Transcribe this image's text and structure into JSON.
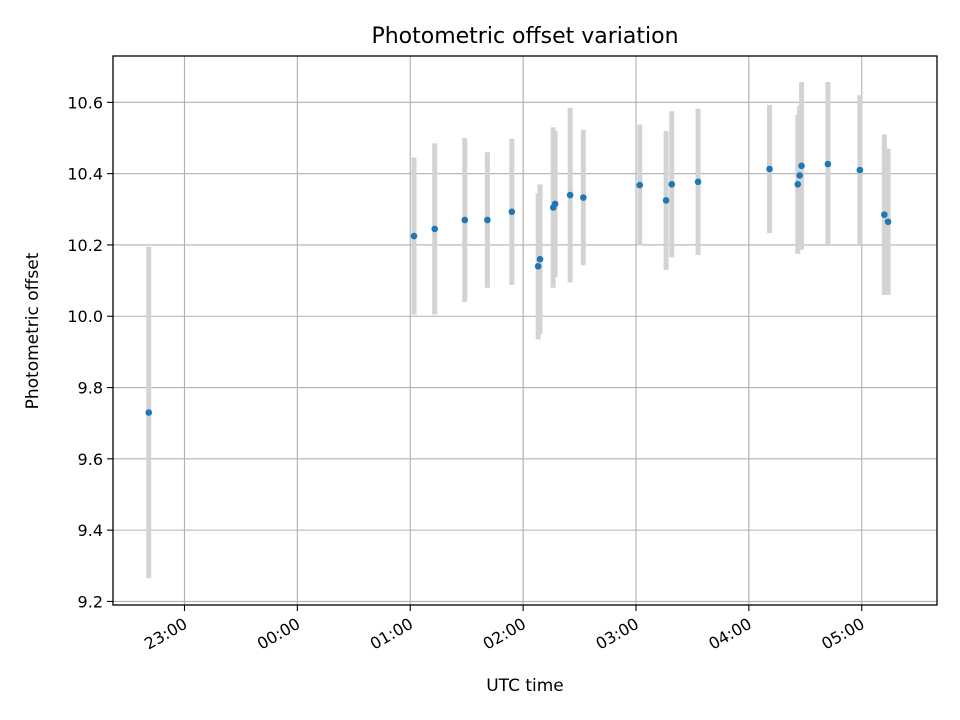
{
  "chart_data": {
    "type": "scatter",
    "title": "Photometric offset variation",
    "xlabel": "UTC time",
    "ylabel": "Photometric offset",
    "x_tick_labels": [
      "23:00",
      "00:00",
      "01:00",
      "02:00",
      "03:00",
      "04:00",
      "05:00"
    ],
    "y_tick_labels": [
      "9.2",
      "9.4",
      "9.6",
      "9.8",
      "10.0",
      "10.2",
      "10.4",
      "10.6"
    ],
    "xlim": [
      "22:22",
      "05:40"
    ],
    "ylim": [
      9.19,
      10.73
    ],
    "grid": true,
    "colors": {
      "point": "#1f77b4",
      "errorbar": "#d3d3d3",
      "grid": "#b0b0b0"
    },
    "series": [
      {
        "points": [
          {
            "x": "22:41",
            "y": 9.73,
            "err": 0.465
          },
          {
            "x": "01:02",
            "y": 10.225,
            "err": 0.22
          },
          {
            "x": "01:13",
            "y": 10.245,
            "err": 0.24
          },
          {
            "x": "01:29",
            "y": 10.27,
            "err": 0.23
          },
          {
            "x": "01:41",
            "y": 10.27,
            "err": 0.19
          },
          {
            "x": "01:54",
            "y": 10.293,
            "err": 0.205
          },
          {
            "x": "02:08",
            "y": 10.14,
            "err": 0.205
          },
          {
            "x": "02:09",
            "y": 10.16,
            "err": 0.21
          },
          {
            "x": "02:16",
            "y": 10.305,
            "err": 0.225
          },
          {
            "x": "02:17",
            "y": 10.315,
            "err": 0.205
          },
          {
            "x": "02:25",
            "y": 10.34,
            "err": 0.245
          },
          {
            "x": "02:32",
            "y": 10.333,
            "err": 0.19
          },
          {
            "x": "03:02",
            "y": 10.368,
            "err": 0.17
          },
          {
            "x": "03:16",
            "y": 10.325,
            "err": 0.195
          },
          {
            "x": "03:19",
            "y": 10.37,
            "err": 0.205
          },
          {
            "x": "03:33",
            "y": 10.377,
            "err": 0.205
          },
          {
            "x": "04:11",
            "y": 10.413,
            "err": 0.18
          },
          {
            "x": "04:26",
            "y": 10.37,
            "err": 0.195
          },
          {
            "x": "04:27",
            "y": 10.395,
            "err": 0.195
          },
          {
            "x": "04:28",
            "y": 10.422,
            "err": 0.235
          },
          {
            "x": "04:42",
            "y": 10.427,
            "err": 0.23
          },
          {
            "x": "04:59",
            "y": 10.41,
            "err": 0.21
          },
          {
            "x": "05:12",
            "y": 10.285,
            "err": 0.225
          },
          {
            "x": "05:14",
            "y": 10.265,
            "err": 0.205
          }
        ]
      }
    ]
  }
}
